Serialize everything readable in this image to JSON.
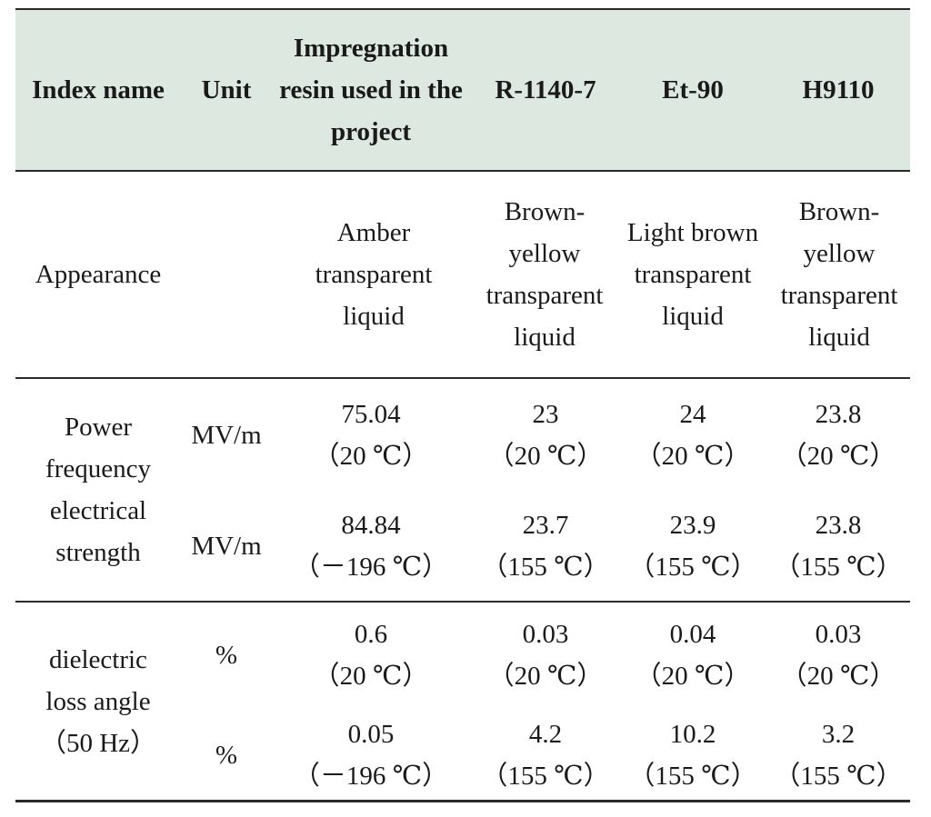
{
  "header": {
    "index_name": "Index name",
    "unit": "Unit",
    "project_resin": "Impregnation resin used in the project",
    "r1140": "R-1140-7",
    "et90": "Et-90",
    "h9110": "H9110"
  },
  "appearance": {
    "name": "Appearance",
    "unit": "",
    "project_resin": "Amber transparent liquid",
    "r1140": "Brown-yellow transparent liquid",
    "et90": "Light brown transparent liquid",
    "h9110": "Brown-yellow transparent liquid"
  },
  "power_frequency": {
    "name": "Power frequency electrical strength",
    "rows": [
      {
        "unit": "MV/m",
        "project_resin": {
          "value": "75.04",
          "cond": "（20 ℃）"
        },
        "r1140": {
          "value": "23",
          "cond": "（20 ℃）"
        },
        "et90": {
          "value": "24",
          "cond": "（20 ℃）"
        },
        "h9110": {
          "value": "23.8",
          "cond": "（20 ℃）"
        }
      },
      {
        "unit": "MV/m",
        "project_resin": {
          "value": "84.84",
          "cond": "（－196 ℃）"
        },
        "r1140": {
          "value": "23.7",
          "cond": "（155 ℃）"
        },
        "et90": {
          "value": "23.9",
          "cond": "（155 ℃）"
        },
        "h9110": {
          "value": "23.8",
          "cond": "（155 ℃）"
        }
      }
    ]
  },
  "dielectric": {
    "name_line1": "dielectric",
    "name_line2": "loss angle",
    "name_line3": "（50 Hz）",
    "rows": [
      {
        "unit": "%",
        "project_resin": {
          "value": "0.6",
          "cond": "（20 ℃）"
        },
        "r1140": {
          "value": "0.03",
          "cond": "（20 ℃）"
        },
        "et90": {
          "value": "0.04",
          "cond": "（20 ℃）"
        },
        "h9110": {
          "value": "0.03",
          "cond": "（20 ℃）"
        }
      },
      {
        "unit": "%",
        "project_resin": {
          "value": "0.05",
          "cond": "（－196 ℃）"
        },
        "r1140": {
          "value": "4.2",
          "cond": "（155 ℃）"
        },
        "et90": {
          "value": "10.2",
          "cond": "（155 ℃）"
        },
        "h9110": {
          "value": "3.2",
          "cond": "（155 ℃）"
        }
      }
    ]
  },
  "colors": {
    "header_bg": "#dde8e1",
    "rule": "#2a2a2a"
  }
}
